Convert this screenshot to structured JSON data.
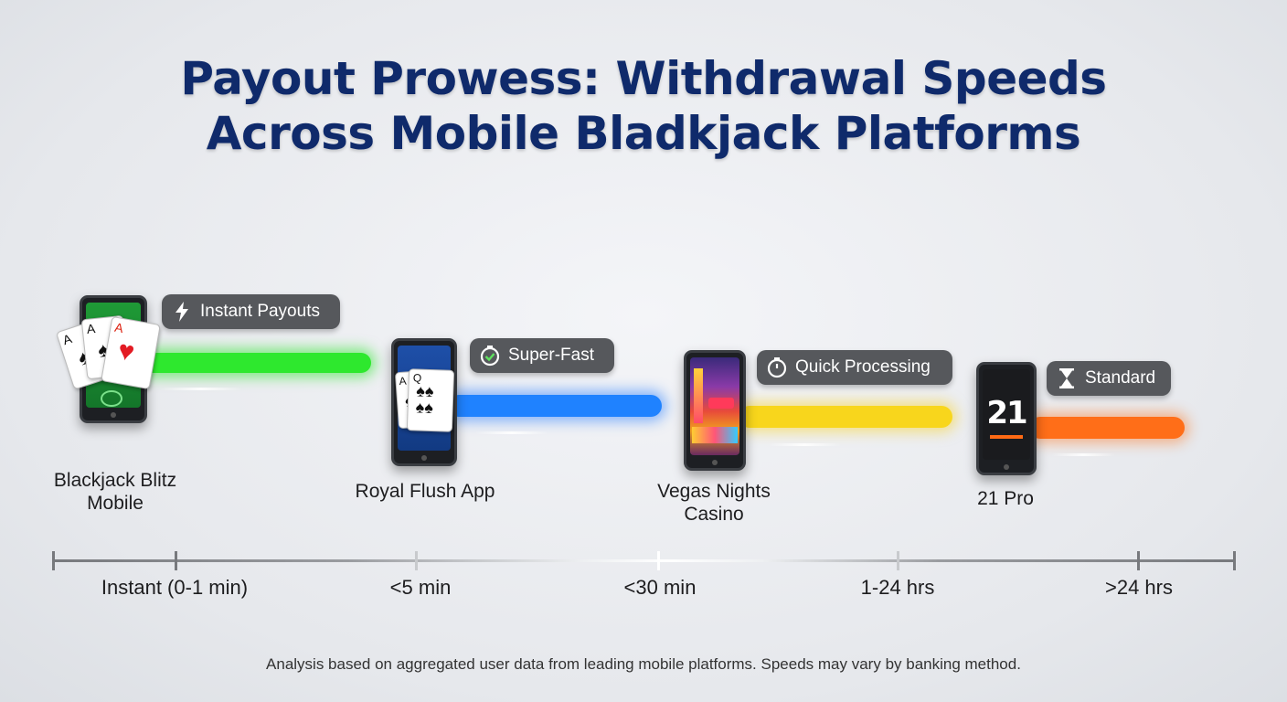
{
  "title": {
    "line1": "Payout Prowess: Withdrawal Speeds",
    "line2": "Across Mobile Bladkjack Platforms"
  },
  "platforms": [
    {
      "name": "Blackjack Blitz Mobile",
      "badge": "Instant Payouts",
      "badge_icon": "lightning-icon",
      "color": "#22dd22",
      "speed_category": "Instant (0-1 min)"
    },
    {
      "name": "Royal Flush App",
      "badge": "Super-Fast",
      "badge_icon": "stopwatch-check-icon",
      "color": "#1a7cff",
      "speed_category": "<5 min"
    },
    {
      "name": "Vegas Nights Casino",
      "badge": "Quick Processing",
      "badge_icon": "stopwatch-icon",
      "color": "#f7d21a",
      "speed_category": "<30 min"
    },
    {
      "name": "21 Pro",
      "badge": "Standard",
      "badge_icon": "hourglass-icon",
      "color": "#ff6a14",
      "speed_category": "1-24 hrs",
      "screen_text": "21"
    }
  ],
  "axis": {
    "labels": [
      "Instant (0-1 min)",
      "<5 min",
      "<30 min",
      "1-24 hrs",
      ">24 hrs"
    ]
  },
  "footnote": "Analysis based on aggregated user data from leading mobile platforms. Speeds may vary by banking method."
}
